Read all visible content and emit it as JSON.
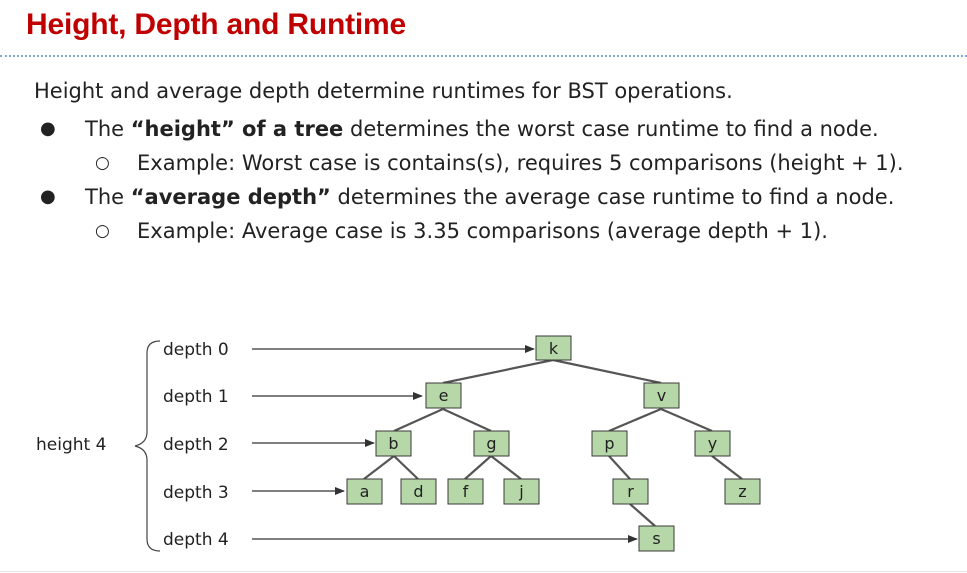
{
  "title": "Height, Depth and Runtime",
  "intro": "Height and average depth determine runtimes for BST operations.",
  "bullets": [
    {
      "prefix": "The ",
      "bold": "“height” of a tree",
      "suffix": " determines the worst case runtime to find a node.",
      "sub": "Example: Worst case is contains(s), requires 5 comparisons (height + 1)."
    },
    {
      "prefix": "The ",
      "bold": "“average depth”",
      "suffix": " determines the average case runtime to find a node.",
      "sub": "Example: Average case is 3.35 comparisons (average depth + 1)."
    }
  ],
  "bullet_glyph": "●",
  "sub_bullet_glyph": "○",
  "diagram": {
    "height_label": "height 4",
    "depth_labels": [
      "depth 0",
      "depth 1",
      "depth 2",
      "depth 3",
      "depth 4"
    ],
    "nodes": [
      "k",
      "e",
      "v",
      "b",
      "g",
      "p",
      "y",
      "a",
      "d",
      "f",
      "j",
      "r",
      "z",
      "s"
    ],
    "node_fill": "#b6d7a8",
    "node_stroke": "#3a3a3a"
  }
}
